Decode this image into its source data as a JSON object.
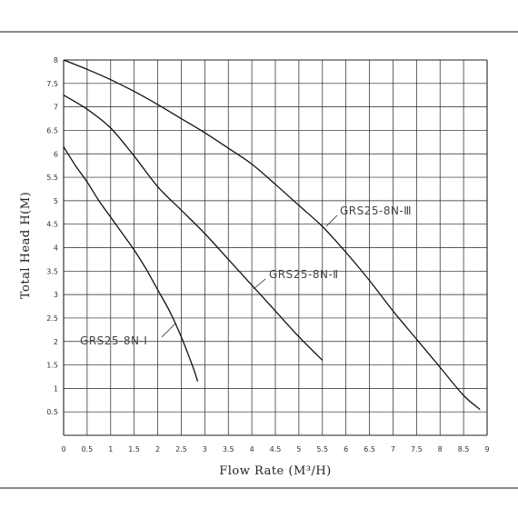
{
  "chart_data": {
    "type": "line",
    "xlabel": "Flow Rate (M³/H)",
    "ylabel": "Total Head H(M)",
    "xlim": [
      0,
      9
    ],
    "ylim": [
      0,
      8
    ],
    "x_ticks": [
      "0",
      "0.5",
      "1",
      "1.5",
      "2",
      "2.5",
      "3",
      "3.5",
      "4",
      "4.5",
      "5",
      "5.5",
      "6",
      "6.5",
      "7",
      "7.5",
      "8",
      "8.5",
      "9"
    ],
    "y_ticks": [
      "0.5",
      "1",
      "1.5",
      "2",
      "2.5",
      "3",
      "3.5",
      "4",
      "4.5",
      "5",
      "5.5",
      "6",
      "6.5",
      "7",
      "7.5",
      "8"
    ],
    "grid": true,
    "series": [
      {
        "name": "GRS25-8N-Ⅰ",
        "x": [
          0,
          0.25,
          0.5,
          0.75,
          1.0,
          1.25,
          1.5,
          1.75,
          2.0,
          2.25,
          2.5,
          2.75,
          2.85
        ],
        "y": [
          6.15,
          5.75,
          5.4,
          5.0,
          4.65,
          4.3,
          3.95,
          3.55,
          3.1,
          2.65,
          2.1,
          1.45,
          1.15
        ]
      },
      {
        "name": "GRS25-8N-Ⅱ",
        "x": [
          0,
          0.5,
          1.0,
          1.5,
          2.0,
          2.5,
          3.0,
          3.5,
          4.0,
          4.5,
          5.0,
          5.5
        ],
        "y": [
          7.25,
          6.95,
          6.55,
          5.95,
          5.3,
          4.8,
          4.3,
          3.75,
          3.2,
          2.65,
          2.1,
          1.6
        ]
      },
      {
        "name": "GRS25-8N-Ⅲ",
        "x": [
          0,
          0.5,
          1.0,
          1.5,
          2.0,
          2.5,
          3.0,
          3.5,
          4.0,
          4.5,
          5.0,
          5.5,
          6.0,
          6.5,
          7.0,
          7.5,
          8.0,
          8.5,
          8.85
        ],
        "y": [
          8.0,
          7.8,
          7.58,
          7.33,
          7.05,
          6.75,
          6.45,
          6.12,
          5.78,
          5.35,
          4.9,
          4.45,
          3.9,
          3.3,
          2.65,
          2.05,
          1.45,
          0.85,
          0.55
        ]
      }
    ],
    "annotations": [
      {
        "series": "GRS25-8N-Ⅰ",
        "text": "GRS25-8N-Ⅰ"
      },
      {
        "series": "GRS25-8N-Ⅱ",
        "text": "GRS25-8N-Ⅱ"
      },
      {
        "series": "GRS25-8N-Ⅲ",
        "text": "GRS25-8N-Ⅲ"
      }
    ]
  }
}
